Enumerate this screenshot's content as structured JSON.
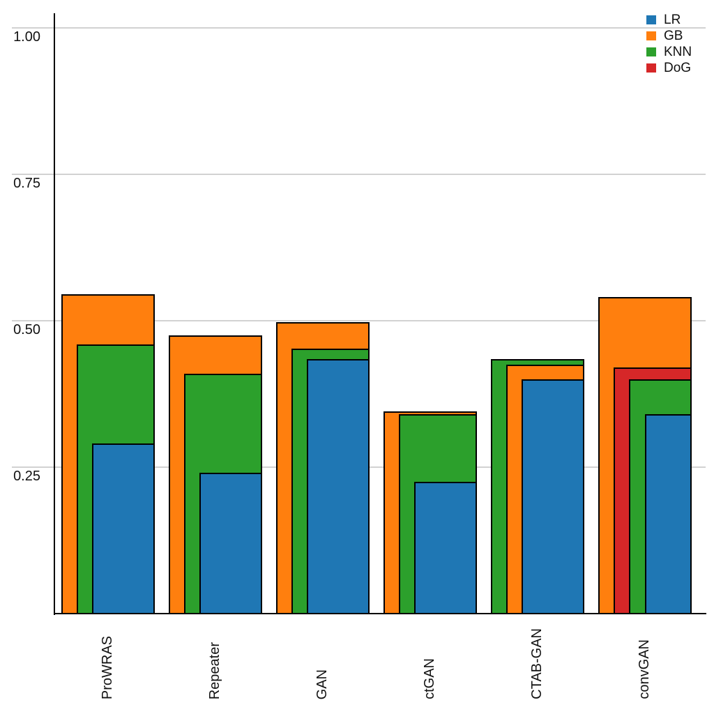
{
  "figure": {
    "background": "#ffffff",
    "axis_color": "#000000",
    "tick_label_color": "#111111"
  },
  "chart_data": {
    "type": "bar",
    "variant": "nested-overlapping-bars-right-aligned",
    "title": "",
    "xlabel": "",
    "ylabel": "",
    "categories": [
      "ProWRAS",
      "Repeater",
      "GAN",
      "ctGAN",
      "CTAB-GAN",
      "convGAN"
    ],
    "series": [
      {
        "name": "LR",
        "color": "#1f77b4",
        "values": [
          0.29,
          0.24,
          0.435,
          0.225,
          0.4,
          0.34
        ]
      },
      {
        "name": "GB",
        "color": "#ff7f0e",
        "values": [
          0.545,
          0.475,
          0.498,
          0.345,
          0.425,
          0.54
        ]
      },
      {
        "name": "KNN",
        "color": "#2ca02c",
        "values": [
          0.46,
          0.41,
          0.452,
          0.34,
          0.435,
          0.4
        ]
      },
      {
        "name": "DoG",
        "color": "#d62728",
        "values": [
          null,
          null,
          null,
          null,
          null,
          0.42
        ]
      }
    ],
    "note_bar_order": "within each category, bars are drawn back-to-front sorted by value descending; taller bars are wider, all share the same right edge",
    "ylim": [
      0,
      1.05
    ],
    "yticks": [
      {
        "value": 0.25,
        "label": "0.25"
      },
      {
        "value": 0.5,
        "label": "0.50"
      },
      {
        "value": 0.75,
        "label": "0.75"
      },
      {
        "value": 1.0,
        "label": "1.00"
      }
    ],
    "grid": "horizontal",
    "gridline_color": "#d2d2d2",
    "bar_edge_color": "#000000",
    "legend": {
      "position": "top-right",
      "entries": [
        "LR",
        "GB",
        "KNN",
        "DoG"
      ]
    }
  }
}
